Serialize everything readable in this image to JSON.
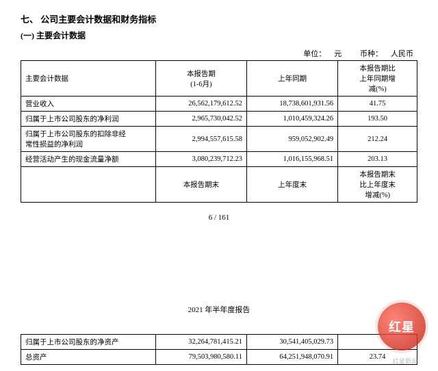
{
  "heading": {
    "section": "七、 公司主要会计数据和财务指标",
    "subsection": "(一) 主要会计数据"
  },
  "unit_line": {
    "unit_label": "单位：",
    "unit_value": "元",
    "currency_label": "币种：",
    "currency_value": "人民币"
  },
  "table1": {
    "headers": {
      "c1": "主要会计数据",
      "c2": "本报告期\n(1-6月)",
      "c3": "上年同期",
      "c4": "本报告期比\n上年同期增\n减(%)"
    },
    "rows": [
      {
        "label": "营业收入",
        "v1": "26,562,179,612.52",
        "v2": "18,738,601,931.56",
        "pct": "41.75"
      },
      {
        "label": "归属于上市公司股东的净利润",
        "v1": "2,965,730,042.52",
        "v2": "1,010,459,324.26",
        "pct": "193.50"
      },
      {
        "label": "归属于上市公司股东的扣除非经\n常性损益的净利润",
        "v1": "2,994,557,615.58",
        "v2": "959,052,902.49",
        "pct": "212.24"
      },
      {
        "label": "经营活动产生的现金流量净额",
        "v1": "3,080,239,712.23",
        "v2": "1,016,155,968.51",
        "pct": "203.13"
      }
    ],
    "headers2": {
      "c2": "本报告期末",
      "c3": "上年度末",
      "c4": "本报告期末\n比上年度末\n增减(%)"
    }
  },
  "page_footer": "6 / 161",
  "annual_title": "2021 年半年度报告",
  "table2": {
    "rows": [
      {
        "label": "归属于上市公司股东的净资产",
        "v1": "32,264,781,415.21",
        "v2": "30,541,405,029.73",
        "pct": ""
      },
      {
        "label": "总资产",
        "v1": "79,503,980,580.11",
        "v2": "64,251,948,070.91",
        "pct": "23.74"
      }
    ]
  },
  "watermark": {
    "text": "红星",
    "sub": "红星新闻"
  },
  "colors": {
    "text": "#000000",
    "border": "#000000",
    "bg": "#ffffff",
    "wm1": "#ff6a5a",
    "wm2": "#d93a2b"
  }
}
